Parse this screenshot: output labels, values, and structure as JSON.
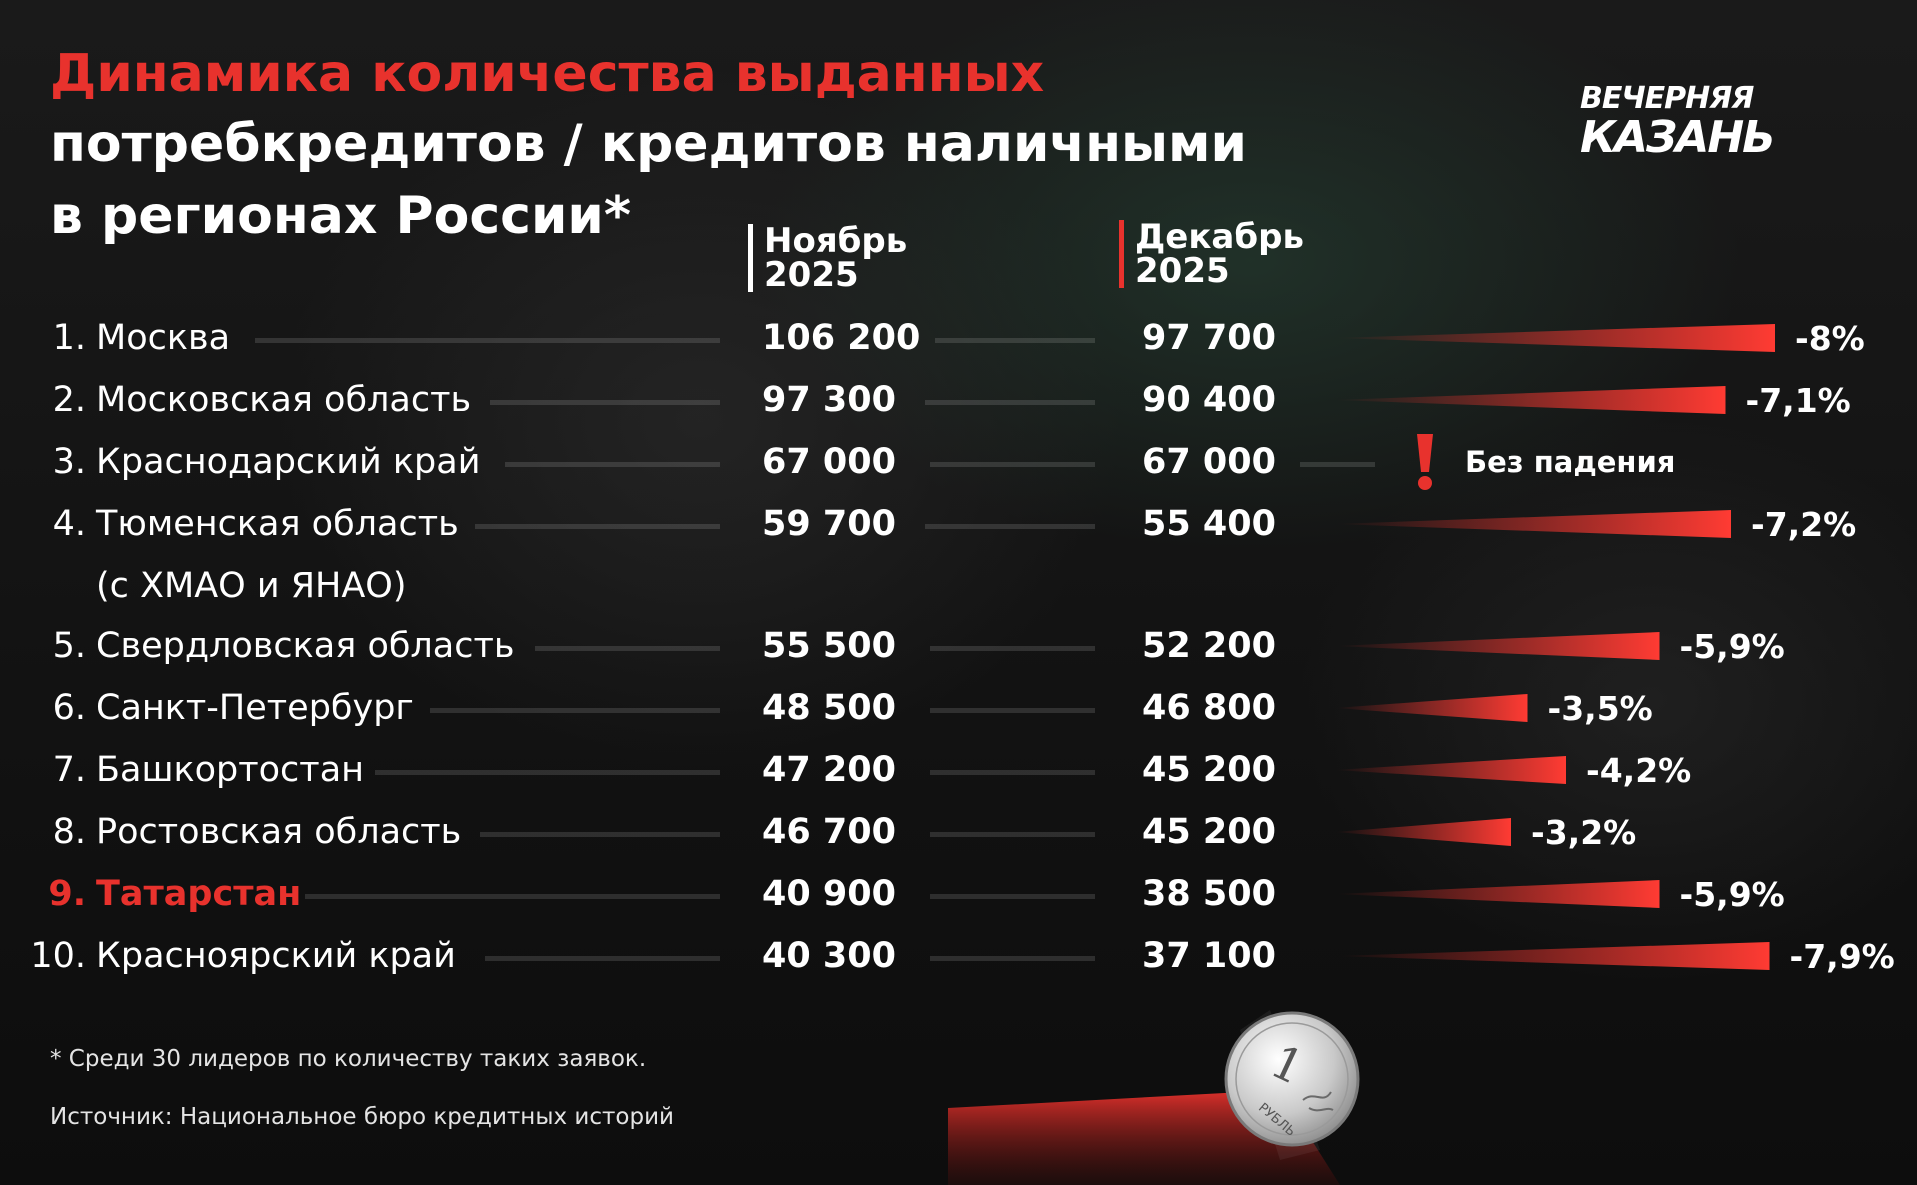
{
  "header": {
    "title_line1": "Динамика количества выданных",
    "title_line2": "потребкредитов / кредитов наличными",
    "title_line3": "в регионах России*",
    "logo_line1": "ВЕЧЕРНЯЯ",
    "logo_line2": "КАЗАНЬ"
  },
  "columns": {
    "nov_month": "Ноябрь",
    "nov_year": "2025",
    "dec_month": "Декабрь",
    "dec_year": "2025"
  },
  "no_fall_label": "Без падения",
  "footnote": "* Среди 30 лидеров по количеству таких заявок.",
  "source": "Источник: Национальное бюро кредитных историй",
  "coin": {
    "value": "1",
    "label": "РУБЛЬ"
  },
  "colors": {
    "accent": "#e8322d",
    "text": "#ffffff",
    "background": "#151515"
  },
  "rows": [
    {
      "rank": "1.",
      "region": "Москва",
      "nov": "106 200",
      "dec": "97 700",
      "change": "-8%"
    },
    {
      "rank": "2.",
      "region": "Московская область",
      "nov": "97 300",
      "dec": "90 400",
      "change": "-7,1%"
    },
    {
      "rank": "3.",
      "region": "Краснодарский край",
      "nov": "67 000",
      "dec": "67 000",
      "change": ""
    },
    {
      "rank": "4.",
      "region": "Тюменская область",
      "region_line2": "(с ХМАО и ЯНАО)",
      "nov": "59 700",
      "dec": "55 400",
      "change": "-7,2%"
    },
    {
      "rank": "5.",
      "region": "Свердловская область",
      "nov": "55 500",
      "dec": "52 200",
      "change": "-5,9%"
    },
    {
      "rank": "6.",
      "region": "Санкт-Петербург",
      "nov": "48 500",
      "dec": "46 800",
      "change": "-3,5%"
    },
    {
      "rank": "7.",
      "region": "Башкортостан",
      "nov": "47 200",
      "dec": "45 200",
      "change": "-4,2%"
    },
    {
      "rank": "8.",
      "region": "Ростовская область",
      "nov": "46 700",
      "dec": "45 200",
      "change": "-3,2%"
    },
    {
      "rank": "9.",
      "region": "Татарстан",
      "nov": "40 900",
      "dec": "38 500",
      "change": "-5,9%",
      "highlight": true
    },
    {
      "rank": "10.",
      "region": "Красноярский край",
      "nov": "40 300",
      "dec": "37 100",
      "change": "-7,9%"
    }
  ],
  "chart_data": {
    "type": "table",
    "title": "Динамика количества выданных потребкредитов / кредитов наличными в регионах России*",
    "columns": [
      "Ноябрь 2025",
      "Декабрь 2025"
    ],
    "categories": [
      "Москва",
      "Московская область",
      "Краснодарский край",
      "Тюменская область (с ХМАО и ЯНАО)",
      "Свердловская область",
      "Санкт-Петербург",
      "Башкортостан",
      "Ростовская область",
      "Татарстан",
      "Красноярский край"
    ],
    "series": [
      {
        "name": "Ноябрь 2025",
        "values": [
          106200,
          97300,
          67000,
          59700,
          55500,
          48500,
          47200,
          46700,
          40900,
          40300
        ]
      },
      {
        "name": "Декабрь 2025",
        "values": [
          97700,
          90400,
          67000,
          55400,
          52200,
          46800,
          45200,
          45200,
          38500,
          37100
        ]
      }
    ],
    "change_percent": [
      -8,
      -7.1,
      0,
      -7.2,
      -5.9,
      -3.5,
      -4.2,
      -3.2,
      -5.9,
      -7.9
    ],
    "highlighted_category": "Татарстан"
  }
}
